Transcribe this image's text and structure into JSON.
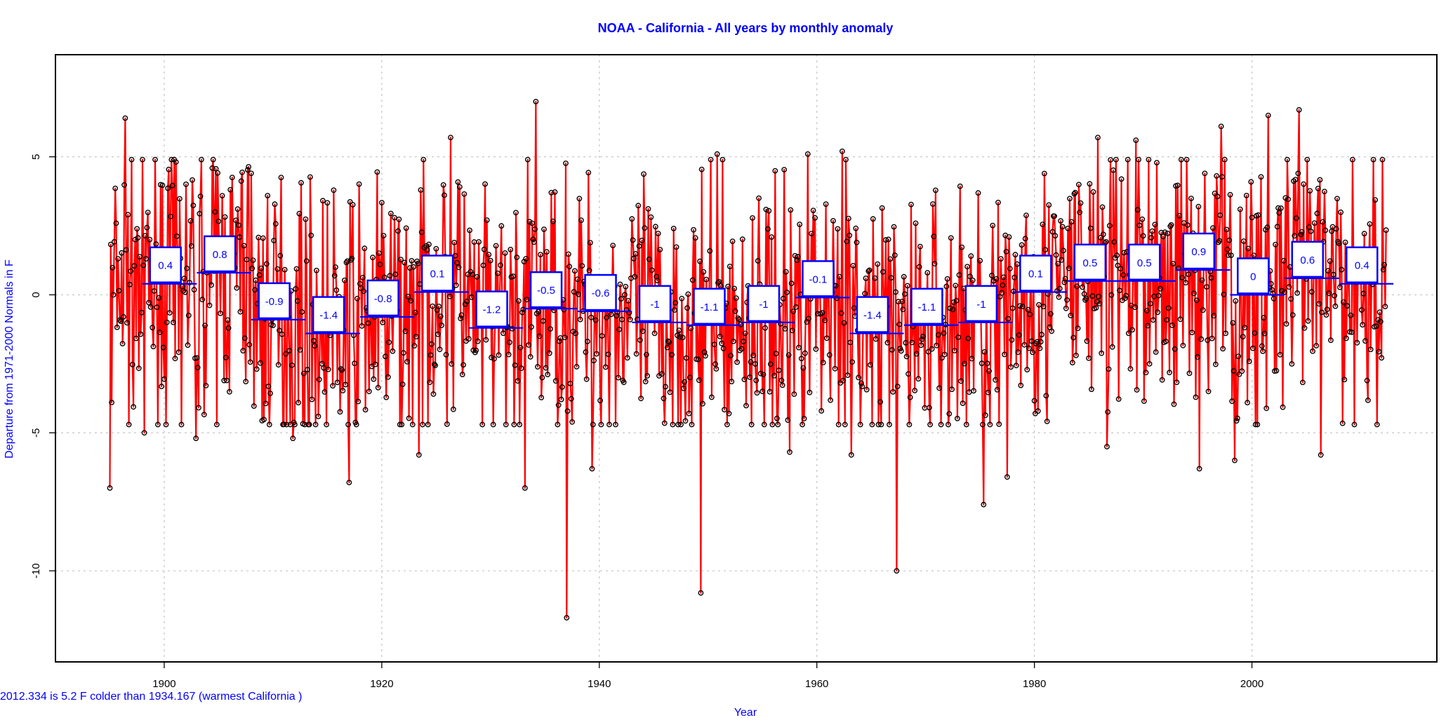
{
  "chart_data": {
    "type": "line",
    "title": "NOAA - California - All years by monthly anomaly",
    "xlabel": "Year",
    "ylabel": "Departure from 1971-2000 Normals in F",
    "xlim": [
      1890,
      2017
    ],
    "ylim": [
      -13.3,
      8.7
    ],
    "x_ticks": [
      1900,
      1920,
      1940,
      1960,
      1980,
      2000
    ],
    "y_ticks": [
      5,
      0,
      -5,
      -10
    ],
    "grid": true,
    "series_color": "#ff0000",
    "marker_color": "#000000",
    "box_color": "#0000ff",
    "start_year": 1895,
    "end_year": 2012.33,
    "anchor_points": [
      {
        "x": 1895.0,
        "y": -7.0
      },
      {
        "x": 1895.2,
        "y": -3.9
      },
      {
        "x": 1896.4,
        "y": 6.4
      },
      {
        "x": 1898.2,
        "y": -5.0
      },
      {
        "x": 1902.9,
        "y": -5.2
      },
      {
        "x": 1908.0,
        "y": 4.4
      },
      {
        "x": 1911.8,
        "y": -5.2
      },
      {
        "x": 1917.0,
        "y": -6.8
      },
      {
        "x": 1923.4,
        "y": -5.8
      },
      {
        "x": 1926.3,
        "y": 5.7
      },
      {
        "x": 1933.2,
        "y": -7.0
      },
      {
        "x": 1934.2,
        "y": 7.0
      },
      {
        "x": 1937.0,
        "y": -11.7
      },
      {
        "x": 1939.3,
        "y": -6.3
      },
      {
        "x": 1949.3,
        "y": -10.8
      },
      {
        "x": 1950.8,
        "y": 5.1
      },
      {
        "x": 1957.5,
        "y": -5.7
      },
      {
        "x": 1959.2,
        "y": 5.1
      },
      {
        "x": 1962.3,
        "y": 5.2
      },
      {
        "x": 1963.2,
        "y": -5.8
      },
      {
        "x": 1967.3,
        "y": -10.0
      },
      {
        "x": 1975.3,
        "y": -7.6
      },
      {
        "x": 1977.5,
        "y": -6.6
      },
      {
        "x": 1985.8,
        "y": 5.7
      },
      {
        "x": 1986.7,
        "y": -5.5
      },
      {
        "x": 1989.3,
        "y": 5.6
      },
      {
        "x": 1995.2,
        "y": -6.3
      },
      {
        "x": 1997.2,
        "y": 6.1
      },
      {
        "x": 1998.4,
        "y": -6.0
      },
      {
        "x": 2001.5,
        "y": 6.5
      },
      {
        "x": 2004.3,
        "y": 6.7
      },
      {
        "x": 2006.3,
        "y": -5.8
      }
    ],
    "decade_means": [
      {
        "x_start": 1898,
        "x_end": 1903,
        "value": 0.4,
        "label": "0.4"
      },
      {
        "x_start": 1903,
        "x_end": 1908,
        "value": 0.8,
        "label": "0.8"
      },
      {
        "x_start": 1908,
        "x_end": 1913,
        "value": -0.9,
        "label": "-0.9"
      },
      {
        "x_start": 1913,
        "x_end": 1918,
        "value": -1.4,
        "label": "-1.4"
      },
      {
        "x_start": 1918,
        "x_end": 1923,
        "value": -0.8,
        "label": "-0.8"
      },
      {
        "x_start": 1923,
        "x_end": 1928,
        "value": 0.1,
        "label": "0.1"
      },
      {
        "x_start": 1928,
        "x_end": 1933,
        "value": -1.2,
        "label": "-1.2"
      },
      {
        "x_start": 1933,
        "x_end": 1938,
        "value": -0.5,
        "label": "-0.5"
      },
      {
        "x_start": 1938,
        "x_end": 1943,
        "value": -0.6,
        "label": "-0.6"
      },
      {
        "x_start": 1943,
        "x_end": 1948,
        "value": -1.0,
        "label": "-1"
      },
      {
        "x_start": 1948,
        "x_end": 1953,
        "value": -1.1,
        "label": "-1.1"
      },
      {
        "x_start": 1953,
        "x_end": 1958,
        "value": -1.0,
        "label": "-1"
      },
      {
        "x_start": 1958,
        "x_end": 1963,
        "value": -0.1,
        "label": "-0.1"
      },
      {
        "x_start": 1963,
        "x_end": 1968,
        "value": -1.4,
        "label": "-1.4"
      },
      {
        "x_start": 1968,
        "x_end": 1973,
        "value": -1.1,
        "label": "-1.1"
      },
      {
        "x_start": 1973,
        "x_end": 1978,
        "value": -1.0,
        "label": "-1"
      },
      {
        "x_start": 1978,
        "x_end": 1983,
        "value": 0.1,
        "label": "0.1"
      },
      {
        "x_start": 1983,
        "x_end": 1988,
        "value": 0.5,
        "label": "0.5"
      },
      {
        "x_start": 1988,
        "x_end": 1993,
        "value": 0.5,
        "label": "0.5"
      },
      {
        "x_start": 1993,
        "x_end": 1998,
        "value": 0.9,
        "label": "0.9"
      },
      {
        "x_start": 1998,
        "x_end": 2003,
        "value": 0.0,
        "label": "0"
      },
      {
        "x_start": 2003,
        "x_end": 2008,
        "value": 0.6,
        "label": "0.6"
      },
      {
        "x_start": 2008,
        "x_end": 2013,
        "value": 0.4,
        "label": "0.4"
      }
    ],
    "annotation": "2012.334 is 5.2 F  colder than 1934.167 (warmest California )"
  }
}
